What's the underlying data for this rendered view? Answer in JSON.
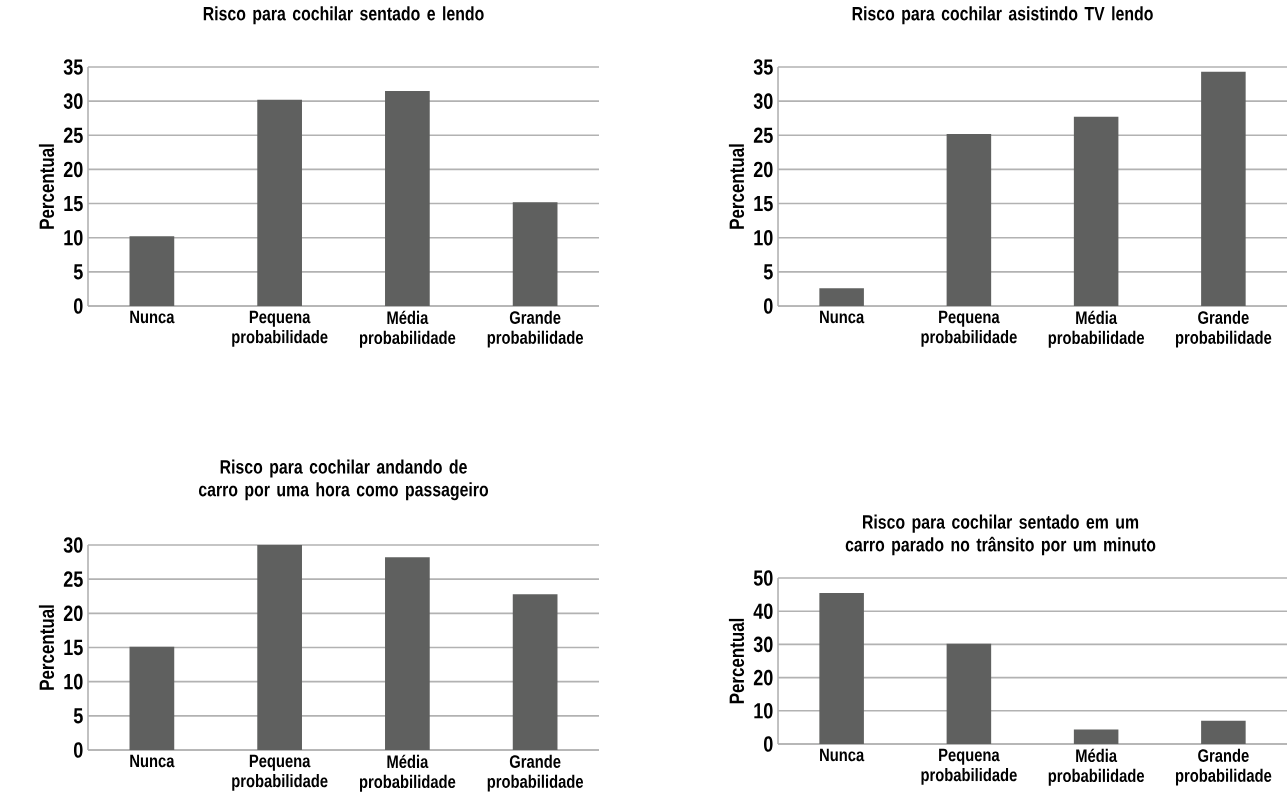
{
  "chart_data": [
    {
      "type": "bar",
      "title": "Risco para cochilar sentado e lendo",
      "ylabel": "Percentual",
      "categories": [
        "Nunca",
        "Pequena probabilidade",
        "Média probabilidade",
        "Grande probabilidade"
      ],
      "values": [
        10.2,
        30.2,
        31.5,
        15.2
      ],
      "color": "#5f605f",
      "ylim": [
        0,
        35
      ],
      "yticks": [
        0,
        5,
        10,
        15,
        20,
        25,
        30,
        35
      ],
      "grid": "y"
    },
    {
      "type": "bar",
      "title": "Risco para cochilar asistindo TV lendo",
      "ylabel": "Percentual",
      "categories": [
        "Nunca",
        "Pequena probabilidade",
        "Média probabilidade",
        "Grande probabilidade"
      ],
      "values": [
        2.6,
        25.2,
        27.7,
        34.3
      ],
      "color": "#5f605f",
      "ylim": [
        0,
        35
      ],
      "yticks": [
        0,
        5,
        10,
        15,
        20,
        25,
        30,
        35
      ],
      "grid": "y"
    },
    {
      "type": "bar",
      "title": "Risco para cochilar andando de carro por uma hora como passageiro",
      "ylabel": "Percentual",
      "categories": [
        "Nunca",
        "Pequena probabilidade",
        "Média probabilidade",
        "Grande probabilidade"
      ],
      "values": [
        15.1,
        30.0,
        28.2,
        22.8
      ],
      "color": "#5f605f",
      "ylim": [
        0,
        30
      ],
      "yticks": [
        0,
        5,
        10,
        15,
        20,
        25,
        30
      ],
      "grid": "y"
    },
    {
      "type": "bar",
      "title": "Risco para cochilar sentado em um carro parado no trânsito por um minuto",
      "ylabel": "Percentual",
      "categories": [
        "Nunca",
        "Pequena probabilidade",
        "Média probabilidade",
        "Grande probabilidade"
      ],
      "values": [
        45.5,
        30.2,
        4.4,
        7.0
      ],
      "color": "#5f605f",
      "ylim": [
        0,
        50
      ],
      "yticks": [
        0,
        10,
        20,
        30,
        40,
        50
      ],
      "grid": "y"
    }
  ]
}
